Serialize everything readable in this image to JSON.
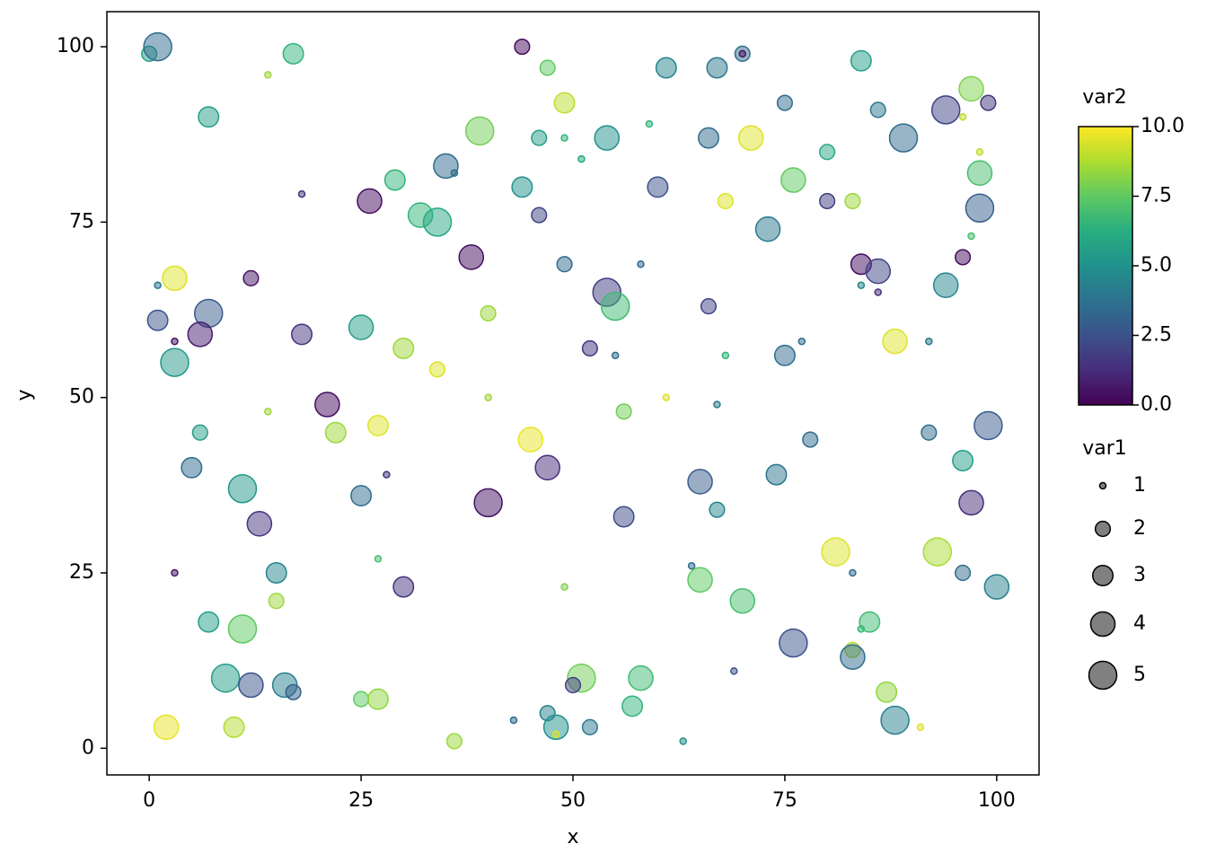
{
  "chart_data": {
    "type": "scatter",
    "xlabel": "x",
    "ylabel": "y",
    "xlim": [
      -5,
      105
    ],
    "ylim": [
      -3.8,
      105
    ],
    "xticks": [
      0,
      25,
      50,
      75,
      100
    ],
    "yticks": [
      0,
      25,
      50,
      75,
      100
    ],
    "colormap": "viridis",
    "alpha": 0.5,
    "x": [
      0,
      1,
      14,
      17,
      44,
      47,
      61,
      67,
      70,
      70,
      84,
      7,
      49,
      75,
      86,
      94,
      96,
      97,
      99,
      39,
      46,
      49,
      54,
      59,
      66,
      71,
      89,
      80,
      98,
      35,
      36,
      51,
      29,
      44,
      60,
      76,
      98,
      18,
      26,
      32,
      34,
      46,
      68,
      80,
      83,
      98,
      73,
      97,
      38,
      49,
      58,
      84,
      86,
      96,
      1,
      3,
      12,
      54,
      55,
      84,
      86,
      94,
      1,
      7,
      3,
      6,
      18,
      25,
      40,
      66,
      3,
      30,
      34,
      52,
      55,
      68,
      75,
      77,
      88,
      92,
      21,
      14,
      40,
      61,
      56,
      67,
      6,
      22,
      27,
      45,
      78,
      92,
      99,
      5,
      28,
      47,
      96,
      11,
      25,
      40,
      65,
      74,
      13,
      56,
      67,
      97,
      3,
      15,
      27,
      30,
      49,
      64,
      65,
      81,
      83,
      93,
      96,
      100,
      7,
      11,
      15,
      70,
      76,
      84,
      85,
      83,
      83,
      9,
      12,
      16,
      17,
      25,
      27,
      51,
      50,
      58,
      69,
      87,
      2,
      10,
      36,
      43,
      47,
      48,
      48,
      52,
      57,
      63,
      88,
      91
    ],
    "values": [
      99,
      100,
      96,
      99,
      100,
      97,
      97,
      97,
      99,
      99,
      98,
      90,
      92,
      92,
      91,
      91,
      90,
      94,
      92,
      88,
      87,
      87,
      87,
      89,
      87,
      87,
      87,
      85,
      85,
      83,
      82,
      84,
      81,
      80,
      80,
      81,
      82,
      79,
      78,
      76,
      75,
      76,
      78,
      78,
      78,
      77,
      74,
      73,
      70,
      69,
      69,
      69,
      68,
      70,
      66,
      67,
      67,
      65,
      63,
      66,
      65,
      66,
      61,
      62,
      58,
      59,
      59,
      60,
      62,
      63,
      55,
      57,
      54,
      57,
      56,
      56,
      56,
      58,
      58,
      58,
      49,
      48,
      50,
      50,
      48,
      49,
      45,
      45,
      46,
      44,
      44,
      45,
      46,
      40,
      39,
      40,
      41,
      37,
      36,
      35,
      38,
      39,
      32,
      33,
      34,
      35,
      25,
      25,
      27,
      23,
      23,
      26,
      24,
      28,
      25,
      28,
      25,
      23,
      18,
      17,
      21,
      21,
      15,
      17,
      18,
      14,
      13,
      10,
      9,
      9,
      8,
      7,
      7,
      10,
      9,
      10,
      11,
      8,
      3,
      3,
      1,
      4,
      5,
      3,
      2,
      3,
      6,
      1,
      4,
      3
    ],
    "sizes": [
      2,
      5,
      1,
      3,
      2,
      2,
      3,
      3,
      2,
      1,
      3,
      3,
      3,
      2,
      2,
      5,
      1,
      4,
      2,
      5,
      2,
      1,
      4,
      1,
      3,
      4,
      5,
      2,
      1,
      4,
      1,
      1,
      3,
      3,
      3,
      4,
      4,
      1,
      4,
      4,
      5,
      2,
      2,
      2,
      2,
      5,
      4,
      1,
      4,
      2,
      1,
      3,
      4,
      2,
      1,
      4,
      2,
      5,
      5,
      1,
      1,
      4,
      3,
      5,
      1,
      4,
      3,
      4,
      2,
      2,
      5,
      3,
      2,
      2,
      1,
      1,
      3,
      1,
      4,
      1,
      4,
      1,
      1,
      1,
      2,
      1,
      2,
      3,
      3,
      4,
      2,
      2,
      5,
      3,
      1,
      4,
      3,
      5,
      3,
      5,
      4,
      3,
      4,
      3,
      2,
      4,
      1,
      3,
      1,
      3,
      1,
      1,
      4,
      5,
      1,
      5,
      2,
      4,
      3,
      5,
      2,
      4,
      5,
      1,
      3,
      2,
      4,
      5,
      4,
      4,
      2,
      2,
      3,
      5,
      2,
      4,
      1,
      3,
      4,
      3,
      2,
      1,
      2,
      4,
      1,
      2,
      3,
      1,
      5,
      1
    ],
    "color_values": [
      5.5,
      3.5,
      8.5,
      6.5,
      0.3,
      7.5,
      4.5,
      4,
      3.5,
      0.5,
      5.5,
      5.5,
      9,
      3.5,
      4,
      2,
      9,
      8,
      1.5,
      7.8,
      5.5,
      6.5,
      5,
      6.5,
      3.5,
      9.5,
      3.5,
      6,
      9,
      3.5,
      3.5,
      6,
      6.5,
      5,
      2.5,
      7.5,
      7,
      1.5,
      0.3,
      6.5,
      6,
      2,
      9.5,
      1.8,
      8.5,
      3,
      4,
      7,
      0.3,
      3.5,
      3.3,
      0.3,
      2,
      0.3,
      4,
      9.5,
      0.5,
      1.8,
      6.8,
      4.5,
      1.3,
      4.5,
      2.5,
      2.8,
      0.5,
      0.8,
      1.5,
      5.5,
      8.5,
      2,
      5.3,
      8.5,
      9.5,
      1.5,
      3.5,
      6.5,
      3.5,
      3.5,
      9.5,
      4,
      0.3,
      8.5,
      8.5,
      9.5,
      7.8,
      4,
      5.5,
      8.5,
      9.5,
      9.7,
      3.5,
      3.5,
      2.8,
      3.5,
      1.5,
      1.3,
      5.5,
      5.3,
      3.5,
      0.5,
      2.8,
      3.8,
      1.5,
      2.3,
      4.5,
      1.3,
      0.5,
      4.5,
      7,
      1.5,
      8,
      3.5,
      7.5,
      9.5,
      3.5,
      8.7,
      3.5,
      4.3,
      5.5,
      7.5,
      8.5,
      7,
      2.5,
      6.5,
      6.8,
      8.8,
      3.5,
      5.5,
      2.5,
      4.3,
      3,
      7.5,
      8.3,
      7.8,
      1.8,
      6.8,
      2.5,
      8.3,
      9.7,
      8.8,
      8.5,
      3.5,
      4.3,
      5,
      9.5,
      4,
      6.5,
      5,
      4.3,
      9.5
    ],
    "colorbar": {
      "title": "var2",
      "lim": [
        0,
        10
      ],
      "ticks": [
        {
          "value": 0,
          "label": "0.0"
        },
        2.5,
        {
          "value": 5,
          "label": "5.0"
        },
        7.5,
        {
          "value": 10,
          "label": "10.0"
        }
      ]
    },
    "size_legend": {
      "title": "var1",
      "values": [
        1,
        2,
        3,
        4,
        5
      ]
    }
  }
}
